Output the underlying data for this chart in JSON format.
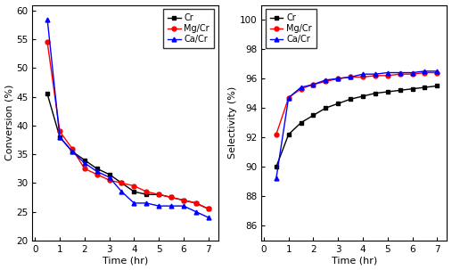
{
  "conv_time_Cr": [
    0.5,
    1.0,
    1.5,
    2.0,
    2.5,
    3.0,
    3.5,
    4.0,
    4.5,
    5.0,
    5.5,
    6.0,
    6.5,
    7.0
  ],
  "conv_Cr": [
    45.5,
    38.0,
    35.5,
    34.0,
    32.5,
    31.5,
    30.0,
    28.5,
    28.0,
    28.0,
    27.5,
    27.0,
    26.5,
    25.5
  ],
  "conv_time_Mg": [
    0.5,
    1.0,
    1.5,
    2.0,
    2.5,
    3.0,
    3.5,
    4.0,
    4.5,
    5.0,
    5.5,
    6.0,
    6.5,
    7.0
  ],
  "conv_MgCr": [
    54.5,
    39.0,
    36.0,
    32.5,
    31.5,
    30.5,
    30.0,
    29.5,
    28.5,
    28.0,
    27.5,
    27.0,
    26.5,
    25.5
  ],
  "conv_time_Ca": [
    0.5,
    1.0,
    1.5,
    2.0,
    2.5,
    3.0,
    3.5,
    4.0,
    4.5,
    5.0,
    5.5,
    6.0,
    6.5,
    7.0
  ],
  "conv_CaCr": [
    58.5,
    38.0,
    35.5,
    33.5,
    32.0,
    31.0,
    28.5,
    26.5,
    26.5,
    26.0,
    26.0,
    26.0,
    25.0,
    24.0
  ],
  "sel_time_Cr": [
    0.5,
    1.0,
    1.5,
    2.0,
    2.5,
    3.0,
    3.5,
    4.0,
    4.5,
    5.0,
    5.5,
    6.0,
    6.5,
    7.0
  ],
  "sel_Cr": [
    90.0,
    92.2,
    93.0,
    93.5,
    94.0,
    94.3,
    94.6,
    94.8,
    95.0,
    95.1,
    95.2,
    95.3,
    95.4,
    95.5
  ],
  "sel_time_Mg": [
    0.5,
    1.0,
    1.5,
    2.0,
    2.5,
    3.0,
    3.5,
    4.0,
    4.5,
    5.0,
    5.5,
    6.0,
    6.5,
    7.0
  ],
  "sel_MgCr": [
    92.2,
    94.7,
    95.3,
    95.6,
    95.8,
    96.0,
    96.1,
    96.1,
    96.2,
    96.2,
    96.3,
    96.3,
    96.4,
    96.4
  ],
  "sel_time_Ca": [
    0.5,
    1.0,
    1.5,
    2.0,
    2.5,
    3.0,
    3.5,
    4.0,
    4.5,
    5.0,
    5.5,
    6.0,
    6.5,
    7.0
  ],
  "sel_CaCr": [
    89.2,
    94.7,
    95.4,
    95.6,
    95.9,
    96.0,
    96.1,
    96.3,
    96.3,
    96.4,
    96.4,
    96.4,
    96.5,
    96.5
  ],
  "color_Cr": "#000000",
  "color_MgCr": "#ff0000",
  "color_CaCr": "#0000ff",
  "xlabel": "Time (hr)",
  "ylabel_conv": "Conversion (%)",
  "ylabel_sel": "Selectivity (%)",
  "label_Cr": "Cr",
  "label_MgCr": "Mg/Cr",
  "label_CaCr": "Ca/Cr",
  "conv_ylim": [
    20,
    61
  ],
  "conv_yticks": [
    20,
    25,
    30,
    35,
    40,
    45,
    50,
    55,
    60
  ],
  "sel_ylim": [
    85,
    101
  ],
  "sel_yticks": [
    86,
    88,
    90,
    92,
    94,
    96,
    98,
    100
  ],
  "xticks": [
    0,
    1,
    2,
    3,
    4,
    5,
    6,
    7
  ]
}
